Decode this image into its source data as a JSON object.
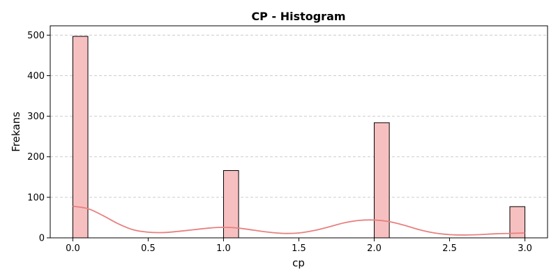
{
  "chart_data": {
    "type": "bar",
    "title": "CP - Histogram",
    "xlabel": "cp",
    "ylabel": "Frekans",
    "xlim": [
      -0.15,
      3.15
    ],
    "ylim": [
      0,
      523
    ],
    "xticks": [
      "0.0",
      "0.5",
      "1.0",
      "1.5",
      "2.0",
      "2.5",
      "3.0"
    ],
    "yticks": [
      "0",
      "100",
      "200",
      "300",
      "400",
      "500"
    ],
    "grid": "y",
    "legend": "none",
    "bar_color": "#f7c0c0",
    "edge_color": "#000000",
    "kde_color": "#e88080",
    "bins": [
      {
        "x0": 0.0,
        "x1": 0.1,
        "value": 497
      },
      {
        "x0": 1.0,
        "x1": 1.1,
        "value": 166
      },
      {
        "x0": 2.0,
        "x1": 2.1,
        "value": 284
      },
      {
        "x0": 2.9,
        "x1": 3.0,
        "value": 77
      }
    ],
    "kde": {
      "x": [
        0.0,
        0.1,
        0.2,
        0.3,
        0.4,
        0.5,
        0.6,
        0.7,
        0.8,
        0.9,
        1.0,
        1.1,
        1.2,
        1.3,
        1.4,
        1.5,
        1.6,
        1.7,
        1.8,
        1.9,
        2.0,
        2.1,
        2.2,
        2.3,
        2.4,
        2.5,
        2.6,
        2.7,
        2.8,
        2.9,
        3.0
      ],
      "y": [
        78,
        72,
        55,
        35,
        20,
        14,
        13,
        16,
        20,
        24,
        26,
        24,
        19,
        14,
        11,
        12,
        18,
        27,
        37,
        43,
        44,
        40,
        31,
        20,
        12,
        8,
        7,
        8,
        10,
        11,
        12
      ]
    }
  }
}
